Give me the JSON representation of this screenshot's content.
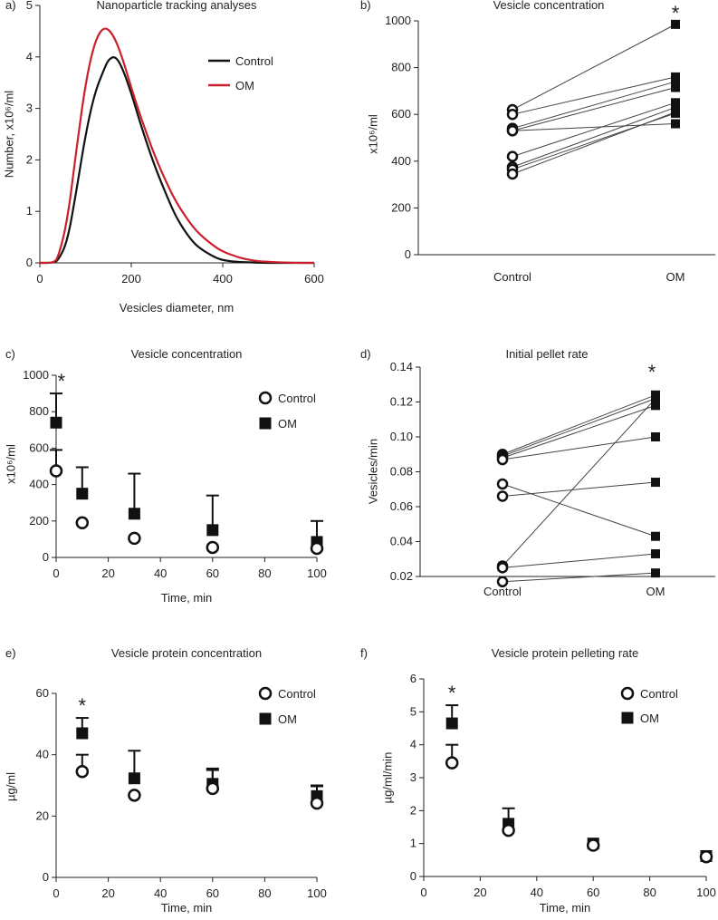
{
  "chart_data": [
    {
      "panel": "a)",
      "type": "line",
      "title": "Nanoparticle tracking analyses",
      "xlabel": "Vesicles diameter, nm",
      "ylabel": "Number, x10⁶/ml",
      "xlim": [
        0,
        600
      ],
      "ylim": [
        0,
        5
      ],
      "xticks": [
        "0",
        "200",
        "400",
        "600"
      ],
      "yticks": [
        "0",
        "1",
        "2",
        "3",
        "4",
        "5"
      ],
      "legend_position": "top-right",
      "series": [
        {
          "name": "Control",
          "color": "#111111",
          "x": [
            0,
            30,
            40,
            60,
            80,
            100,
            120,
            140,
            150,
            165,
            180,
            200,
            220,
            250,
            280,
            300,
            330,
            350,
            380,
            400,
            430,
            450,
            500,
            550,
            600
          ],
          "y": [
            0,
            0,
            0.05,
            0.4,
            1.4,
            2.5,
            3.3,
            3.75,
            3.95,
            4.02,
            3.8,
            3.3,
            2.7,
            1.9,
            1.25,
            0.85,
            0.45,
            0.28,
            0.12,
            0.05,
            0.02,
            0.01,
            0,
            0,
            0
          ]
        },
        {
          "name": "OM",
          "color": "#cc1f2e",
          "x": [
            0,
            30,
            40,
            60,
            80,
            100,
            120,
            140,
            160,
            180,
            200,
            220,
            250,
            280,
            300,
            330,
            350,
            380,
            400,
            430,
            450,
            480,
            500,
            550,
            600
          ],
          "y": [
            0,
            0,
            0.1,
            0.8,
            2.2,
            3.5,
            4.3,
            4.6,
            4.45,
            4.0,
            3.4,
            2.85,
            2.1,
            1.5,
            1.15,
            0.75,
            0.55,
            0.33,
            0.22,
            0.12,
            0.07,
            0.03,
            0.02,
            0,
            0
          ]
        }
      ]
    },
    {
      "panel": "b)",
      "type": "scatter",
      "title": "Vesicle concentration",
      "xlabel": "",
      "ylabel": "x10⁶/ml",
      "categories": [
        "Control",
        "OM"
      ],
      "ylim": [
        0,
        1000
      ],
      "yticks": [
        "0",
        "200",
        "400",
        "600",
        "800",
        "1000"
      ],
      "significance": "*",
      "pairs": [
        [
          620,
          985
        ],
        [
          600,
          760
        ],
        [
          540,
          740
        ],
        [
          530,
          715
        ],
        [
          420,
          650
        ],
        [
          375,
          630
        ],
        [
          365,
          605
        ],
        [
          345,
          610
        ],
        [
          530,
          560
        ]
      ]
    },
    {
      "panel": "c)",
      "type": "scatter",
      "title": "Vesicle concentration",
      "xlabel": "Time, min",
      "ylabel": "x10⁶/ml",
      "xlim": [
        0,
        100
      ],
      "ylim": [
        0,
        1000
      ],
      "xticks": [
        "0",
        "20",
        "40",
        "60",
        "80",
        "100"
      ],
      "yticks": [
        "0",
        "200",
        "400",
        "600",
        "800",
        "1000"
      ],
      "legend_position": "top-right",
      "significance": "*",
      "significance_x": 2,
      "series": [
        {
          "name": "Control",
          "marker": "open-circle",
          "x": [
            0,
            10,
            30,
            60,
            100
          ],
          "y": [
            475,
            190,
            105,
            55,
            50
          ],
          "err": [
            115,
            0,
            0,
            0,
            0
          ]
        },
        {
          "name": "OM",
          "marker": "filled-square",
          "x": [
            0,
            10,
            30,
            60,
            100
          ],
          "y": [
            740,
            350,
            240,
            150,
            85
          ],
          "err": [
            160,
            145,
            220,
            190,
            115
          ]
        }
      ]
    },
    {
      "panel": "d)",
      "type": "scatter",
      "title": "Initial pellet rate",
      "xlabel": "",
      "ylabel": "Vesicles/min",
      "categories": [
        "Control",
        "OM"
      ],
      "ylim": [
        0.02,
        0.14
      ],
      "yticks": [
        "0.02",
        "0.04",
        "0.06",
        "0.08",
        "0.10",
        "0.12",
        "0.14"
      ],
      "significance": "*",
      "pairs": [
        [
          0.09,
          0.124
        ],
        [
          0.089,
          0.122
        ],
        [
          0.088,
          0.118
        ],
        [
          0.087,
          0.1
        ],
        [
          0.073,
          0.043
        ],
        [
          0.066,
          0.074
        ],
        [
          0.026,
          0.122
        ],
        [
          0.025,
          0.033
        ],
        [
          0.017,
          0.022
        ]
      ]
    },
    {
      "panel": "e)",
      "type": "scatter",
      "title": "Vesicle protein concentration",
      "xlabel": "Time, min",
      "ylabel": "µg/ml",
      "xlim": [
        0,
        100
      ],
      "ylim": [
        0,
        60
      ],
      "xticks": [
        "0",
        "20",
        "40",
        "60",
        "80",
        "100"
      ],
      "yticks": [
        "0",
        "20",
        "40",
        "60"
      ],
      "legend_position": "top-right",
      "significance": "*",
      "significance_x": 10,
      "series": [
        {
          "name": "Control",
          "marker": "open-circle",
          "x": [
            10,
            30,
            60,
            100
          ],
          "y": [
            34.5,
            26.8,
            29,
            24.2
          ],
          "err": [
            5.5,
            0,
            6,
            5.5
          ]
        },
        {
          "name": "OM",
          "marker": "filled-square",
          "x": [
            10,
            30,
            60,
            100
          ],
          "y": [
            47,
            32.3,
            30.5,
            26.5
          ],
          "err": [
            5,
            9,
            5,
            3.5
          ]
        }
      ]
    },
    {
      "panel": "f)",
      "type": "scatter",
      "title": "Vesicle protein pelleting rate",
      "xlabel": "Time, min",
      "ylabel": "µg/ml/min",
      "xlim": [
        0,
        100
      ],
      "ylim": [
        0,
        6
      ],
      "xticks": [
        "0",
        "20",
        "40",
        "60",
        "80",
        "100"
      ],
      "yticks": [
        "0",
        "1",
        "2",
        "3",
        "4",
        "5",
        "6"
      ],
      "legend_position": "top-right",
      "significance": "*",
      "significance_x": 10,
      "series": [
        {
          "name": "Control",
          "marker": "open-circle",
          "x": [
            10,
            30,
            60,
            100
          ],
          "y": [
            3.45,
            1.4,
            0.95,
            0.6
          ],
          "err": [
            0.55,
            0,
            0,
            0
          ]
        },
        {
          "name": "OM",
          "marker": "filled-square",
          "x": [
            10,
            30,
            60,
            100
          ],
          "y": [
            4.65,
            1.6,
            1.0,
            0.62
          ],
          "err": [
            0.55,
            0.47,
            0,
            0
          ]
        }
      ]
    }
  ]
}
